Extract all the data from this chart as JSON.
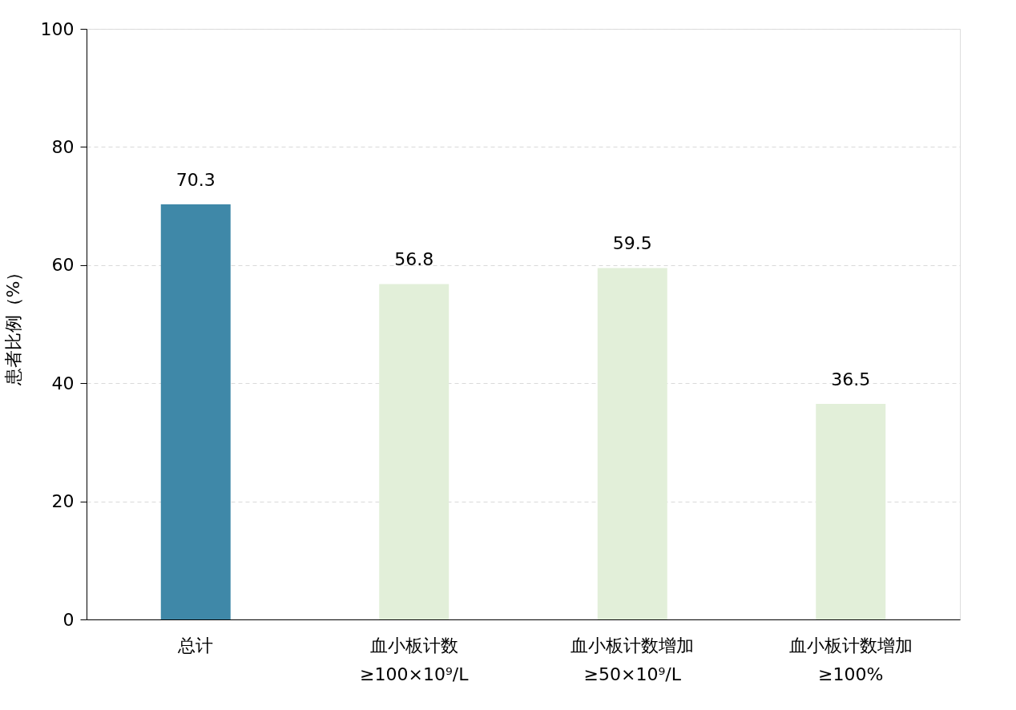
{
  "chart_data": {
    "type": "bar",
    "ylabel": "患者比例（%）",
    "categories": [
      "总计",
      "血小板计数\n≥100×10⁹/L",
      "血小板计数增加\n≥50×10⁹/L",
      "血小板计数增加\n≥100%"
    ],
    "values": [
      70.3,
      56.8,
      59.5,
      36.5
    ],
    "colors": [
      "#3f88a8",
      "#e2efd9",
      "#e2efd9",
      "#e2efd9"
    ],
    "ylim": [
      0,
      100
    ],
    "yticks": [
      0,
      20,
      40,
      60,
      80,
      100
    ],
    "grid": "y",
    "data_labels": true
  }
}
